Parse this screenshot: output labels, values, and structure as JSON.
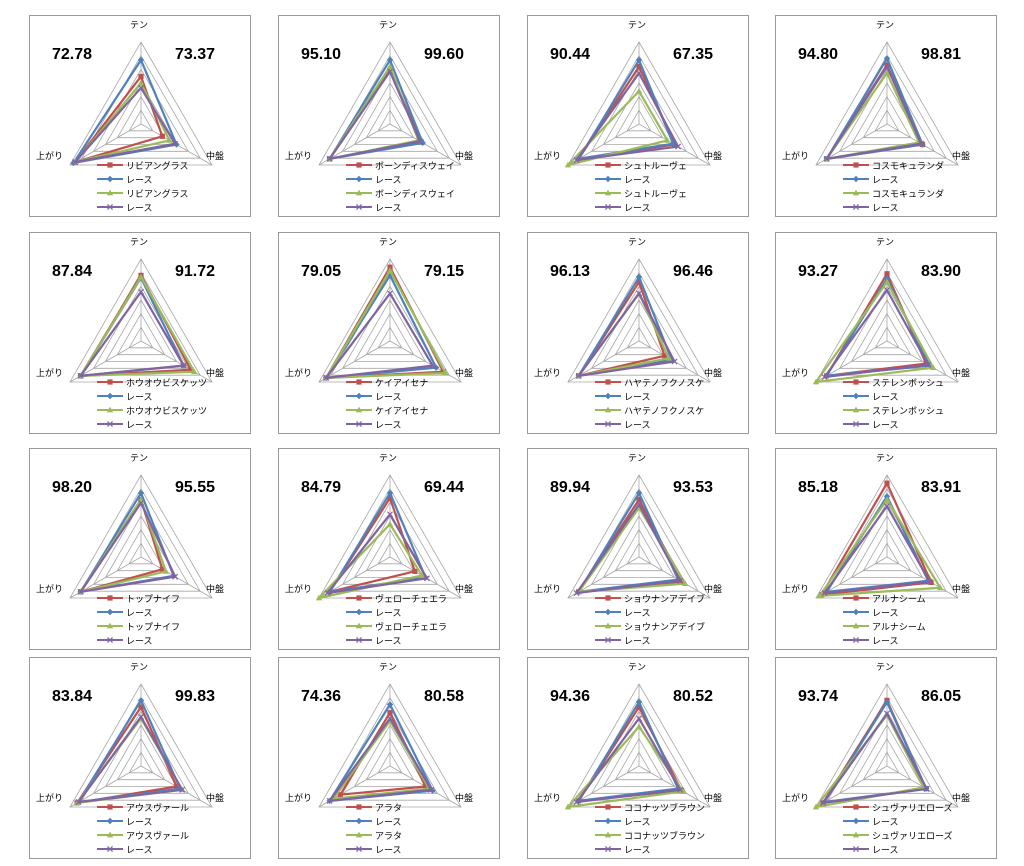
{
  "axes": [
    "テン",
    "中盤",
    "上がり"
  ],
  "colors": {
    "horse": "#C0504D",
    "race": "#4F81BD",
    "horse2": "#9BBB59",
    "race2": "#8064A2"
  },
  "chart_data": [
    {
      "type": "radar",
      "left_score": "72.78",
      "right_score": "73.37",
      "legend": [
        "リビアングラス",
        "レース",
        "リビアングラス",
        "レース"
      ],
      "series": [
        {
          "values": [
            0.58,
            0.3,
            0.93
          ]
        },
        {
          "values": [
            0.78,
            0.5,
            0.95
          ]
        },
        {
          "values": [
            0.5,
            0.4,
            0.92
          ]
        },
        {
          "values": [
            0.44,
            0.48,
            0.93
          ]
        }
      ]
    },
    {
      "type": "radar",
      "left_score": "95.10",
      "right_score": "99.60",
      "legend": [
        "ボーンディスウェイ",
        "レース",
        "ボーンディスウェイ",
        "レース"
      ],
      "series": [
        {
          "values": [
            0.66,
            0.44,
            0.85
          ]
        },
        {
          "values": [
            0.78,
            0.46,
            0.85
          ]
        },
        {
          "values": [
            0.7,
            0.4,
            0.85
          ]
        },
        {
          "values": [
            0.64,
            0.42,
            0.85
          ]
        }
      ]
    },
    {
      "type": "radar",
      "left_score": "90.44",
      "right_score": "67.35",
      "legend": [
        "シュトルーヴェ",
        "レース",
        "シュトルーヴェ",
        "レース"
      ],
      "series": [
        {
          "values": [
            0.7,
            0.5,
            0.85
          ]
        },
        {
          "values": [
            0.78,
            0.48,
            0.85
          ]
        },
        {
          "values": [
            0.4,
            0.4,
            1.0
          ]
        },
        {
          "values": [
            0.62,
            0.55,
            0.88
          ]
        }
      ]
    },
    {
      "type": "radar",
      "left_score": "94.80",
      "right_score": "98.81",
      "legend": [
        "コスモキュランダ",
        "レース",
        "コスモキュランダ",
        "レース"
      ],
      "series": [
        {
          "values": [
            0.72,
            0.5,
            0.85
          ]
        },
        {
          "values": [
            0.8,
            0.5,
            0.85
          ]
        },
        {
          "values": [
            0.62,
            0.45,
            0.85
          ]
        },
        {
          "values": [
            0.7,
            0.48,
            0.85
          ]
        }
      ]
    },
    {
      "type": "radar",
      "left_score": "87.84",
      "right_score": "91.72",
      "legend": [
        "ホウオウビスケッツ",
        "レース",
        "ホウオウビスケッツ",
        "レース"
      ],
      "series": [
        {
          "values": [
            0.8,
            0.7,
            0.85
          ]
        },
        {
          "values": [
            0.77,
            0.6,
            0.85
          ]
        },
        {
          "values": [
            0.78,
            0.75,
            0.85
          ]
        },
        {
          "values": [
            0.6,
            0.6,
            0.85
          ]
        }
      ]
    },
    {
      "type": "radar",
      "left_score": "79.05",
      "right_score": "79.15",
      "legend": [
        "ケイアイセナ",
        "レース",
        "ケイアイセナ",
        "レース"
      ],
      "series": [
        {
          "values": [
            0.9,
            0.75,
            0.9
          ]
        },
        {
          "values": [
            0.8,
            0.65,
            0.9
          ]
        },
        {
          "values": [
            0.86,
            0.78,
            0.9
          ]
        },
        {
          "values": [
            0.58,
            0.6,
            0.9
          ]
        }
      ]
    },
    {
      "type": "radar",
      "left_score": "96.13",
      "right_score": "96.46",
      "legend": [
        "ハヤテノフクノスケ",
        "レース",
        "ハヤテノフクノスケ",
        "レース"
      ],
      "series": [
        {
          "values": [
            0.72,
            0.36,
            0.85
          ]
        },
        {
          "values": [
            0.78,
            0.46,
            0.85
          ]
        },
        {
          "values": [
            0.58,
            0.42,
            0.85
          ]
        },
        {
          "values": [
            0.58,
            0.5,
            0.85
          ]
        }
      ]
    },
    {
      "type": "radar",
      "left_score": "93.27",
      "right_score": "83.90",
      "legend": [
        "ステレンボッシュ",
        "レース",
        "ステレンボッシュ",
        "レース"
      ],
      "series": [
        {
          "values": [
            0.82,
            0.55,
            0.85
          ]
        },
        {
          "values": [
            0.76,
            0.6,
            0.85
          ]
        },
        {
          "values": [
            0.72,
            0.65,
            1.0
          ]
        },
        {
          "values": [
            0.62,
            0.58,
            0.88
          ]
        }
      ]
    },
    {
      "type": "radar",
      "left_score": "98.20",
      "right_score": "95.55",
      "legend": [
        "トップナイフ",
        "レース",
        "トップナイフ",
        "レース"
      ],
      "series": [
        {
          "values": [
            0.7,
            0.3,
            0.85
          ]
        },
        {
          "values": [
            0.78,
            0.46,
            0.85
          ]
        },
        {
          "values": [
            0.7,
            0.35,
            0.85
          ]
        },
        {
          "values": [
            0.66,
            0.48,
            0.85
          ]
        }
      ]
    },
    {
      "type": "radar",
      "left_score": "84.79",
      "right_score": "69.44",
      "legend": [
        "ヴェローチェエラ",
        "レース",
        "ヴェローチェエラ",
        "レース"
      ],
      "series": [
        {
          "values": [
            0.72,
            0.35,
            0.85
          ]
        },
        {
          "values": [
            0.78,
            0.5,
            0.85
          ]
        },
        {
          "values": [
            0.4,
            0.45,
            1.0
          ]
        },
        {
          "values": [
            0.52,
            0.52,
            0.88
          ]
        }
      ]
    },
    {
      "type": "radar",
      "left_score": "89.94",
      "right_score": "93.53",
      "legend": [
        "ショウナンアデイブ",
        "レース",
        "ショウナンアデイブ",
        "レース"
      ],
      "series": [
        {
          "values": [
            0.7,
            0.6,
            0.85
          ]
        },
        {
          "values": [
            0.78,
            0.55,
            0.85
          ]
        },
        {
          "values": [
            0.6,
            0.65,
            0.85
          ]
        },
        {
          "values": [
            0.64,
            0.58,
            0.88
          ]
        }
      ]
    },
    {
      "type": "radar",
      "left_score": "85.18",
      "right_score": "83.91",
      "legend": [
        "アルナシーム",
        "レース",
        "アルナシーム",
        "レース"
      ],
      "series": [
        {
          "values": [
            0.9,
            0.62,
            0.92
          ]
        },
        {
          "values": [
            0.74,
            0.58,
            0.85
          ]
        },
        {
          "values": [
            0.7,
            0.75,
            0.95
          ]
        },
        {
          "values": [
            0.62,
            0.6,
            0.88
          ]
        }
      ]
    },
    {
      "type": "radar",
      "left_score": "83.84",
      "right_score": "99.83",
      "legend": [
        "アウスヴァール",
        "レース",
        "アウスヴァール",
        "レース"
      ],
      "series": [
        {
          "values": [
            0.72,
            0.5,
            0.9
          ]
        },
        {
          "values": [
            0.8,
            0.55,
            0.88
          ]
        },
        {
          "values": [
            0.58,
            0.58,
            0.9
          ]
        },
        {
          "values": [
            0.6,
            0.58,
            0.88
          ]
        }
      ]
    },
    {
      "type": "radar",
      "left_score": "74.36",
      "right_score": "80.58",
      "legend": [
        "アラタ",
        "レース",
        "アラタ",
        "レース"
      ],
      "series": [
        {
          "values": [
            0.65,
            0.5,
            0.7
          ]
        },
        {
          "values": [
            0.75,
            0.6,
            0.85
          ]
        },
        {
          "values": [
            0.55,
            0.55,
            0.8
          ]
        },
        {
          "values": [
            0.58,
            0.58,
            0.85
          ]
        }
      ]
    },
    {
      "type": "radar",
      "left_score": "94.36",
      "right_score": "80.52",
      "legend": [
        "ココナッツブラウン",
        "レース",
        "ココナッツブラウン",
        "レース"
      ],
      "series": [
        {
          "values": [
            0.72,
            0.6,
            0.85
          ]
        },
        {
          "values": [
            0.78,
            0.55,
            0.85
          ]
        },
        {
          "values": [
            0.48,
            0.62,
            1.0
          ]
        },
        {
          "values": [
            0.58,
            0.58,
            0.88
          ]
        }
      ]
    },
    {
      "type": "radar",
      "left_score": "93.74",
      "right_score": "86.05",
      "legend": [
        "シュヴァリエローズ",
        "レース",
        "シュヴァリエローズ",
        "レース"
      ],
      "series": [
        {
          "values": [
            0.8,
            0.55,
            0.9
          ]
        },
        {
          "values": [
            0.78,
            0.55,
            0.88
          ]
        },
        {
          "values": [
            0.62,
            0.52,
            1.0
          ]
        },
        {
          "values": [
            0.64,
            0.56,
            0.9
          ]
        }
      ]
    }
  ]
}
